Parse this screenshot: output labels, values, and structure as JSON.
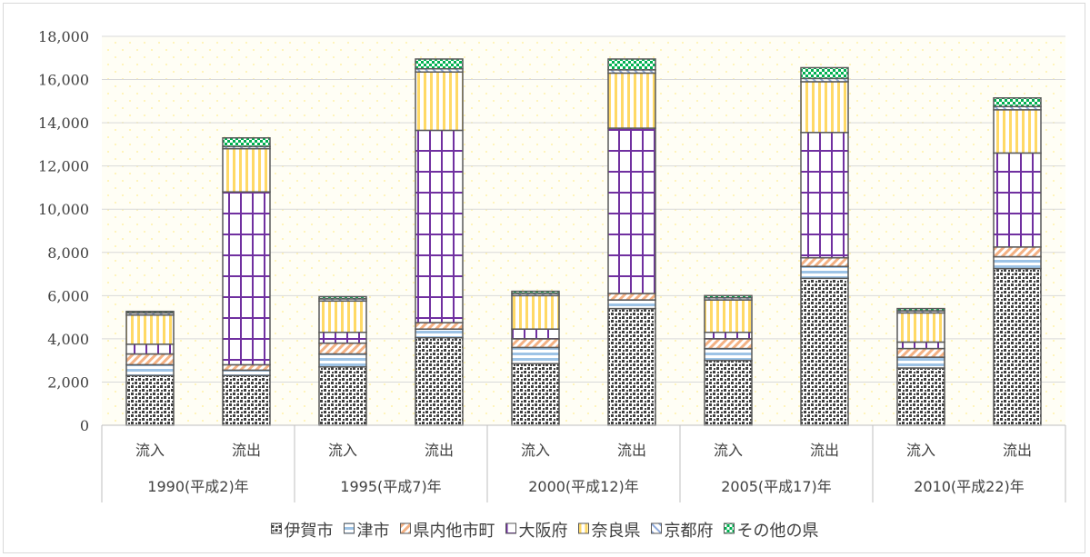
{
  "chart_data": {
    "type": "bar",
    "stacked": true,
    "title": "",
    "xlabel": "",
    "ylabel": "",
    "ylim": [
      0,
      18000
    ],
    "y_ticks": [
      "0",
      "2,000",
      "4,000",
      "6,000",
      "8,000",
      "10,000",
      "12,000",
      "14,000",
      "16,000",
      "18,000"
    ],
    "grid": true,
    "legend_position": "bottom",
    "groups": [
      "1990(平成2)年",
      "1995(平成7)年",
      "2000(平成12)年",
      "2005(平成17)年",
      "2010(平成22)年"
    ],
    "categories": [
      "流入",
      "流出",
      "流入",
      "流出",
      "流入",
      "流出",
      "流入",
      "流出",
      "流入",
      "流出"
    ],
    "series": [
      {
        "name": "伊賀市",
        "color": "#404040",
        "values": [
          2300,
          2300,
          2700,
          4050,
          2850,
          5400,
          3000,
          6800,
          2650,
          7250
        ]
      },
      {
        "name": "津市",
        "color": "#9dc3e6",
        "values": [
          500,
          250,
          600,
          400,
          750,
          400,
          550,
          550,
          500,
          550
        ]
      },
      {
        "name": "県内他市町",
        "color": "#f4b183",
        "values": [
          500,
          250,
          500,
          300,
          400,
          300,
          450,
          400,
          400,
          450
        ]
      },
      {
        "name": "大阪府",
        "color": "#7030a0",
        "values": [
          450,
          8000,
          500,
          8900,
          450,
          7650,
          300,
          5800,
          300,
          4350
        ]
      },
      {
        "name": "奈良県",
        "color": "#ffd966",
        "values": [
          1350,
          2000,
          1450,
          2700,
          1550,
          2550,
          1500,
          2350,
          1350,
          2000
        ]
      },
      {
        "name": "京都府",
        "color": "#8faadc",
        "values": [
          100,
          100,
          100,
          150,
          100,
          150,
          100,
          150,
          100,
          150
        ]
      },
      {
        "name": "その他の県",
        "color": "#00b050",
        "values": [
          70,
          400,
          100,
          450,
          100,
          500,
          100,
          500,
          100,
          400
        ]
      }
    ]
  }
}
